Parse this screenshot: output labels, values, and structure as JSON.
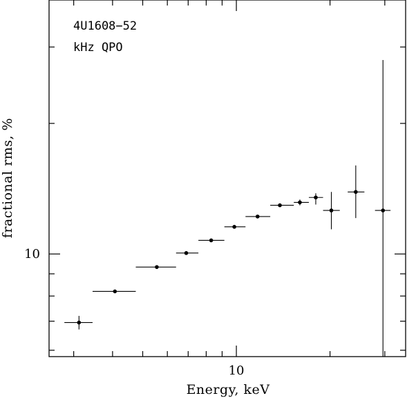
{
  "chart_data": {
    "type": "scatter",
    "xlabel": "Energy, keV",
    "ylabel": "fractional rms, %",
    "annotations": [
      "4U1608−52",
      "kHz QPO"
    ],
    "x_scale": "log",
    "y_scale": "log",
    "xlim": [
      2.5,
      35
    ],
    "ylim": [
      5.8,
      38.5
    ],
    "x_tick_labels": [
      {
        "value": 10,
        "label": "10"
      }
    ],
    "y_tick_labels": [
      {
        "value": 10,
        "label": "10"
      }
    ],
    "x_major_ticks": [
      10
    ],
    "x_minor_ticks": [
      3,
      4,
      5,
      6,
      7,
      8,
      9,
      20,
      30
    ],
    "y_major_ticks": [
      10
    ],
    "y_minor_ticks": [
      6,
      7,
      8,
      9,
      20,
      30
    ],
    "grid": false,
    "legend": "none",
    "points": [
      {
        "x": 3.12,
        "xerr": [
          2.8,
          3.45
        ],
        "y": 6.95,
        "yerr": [
          6.7,
          7.2
        ]
      },
      {
        "x": 4.07,
        "xerr": [
          3.45,
          4.75
        ],
        "y": 8.2,
        "yerr": [
          8.15,
          8.25
        ]
      },
      {
        "x": 5.55,
        "xerr": [
          4.75,
          6.4
        ],
        "y": 9.33,
        "yerr": [
          9.3,
          9.36
        ]
      },
      {
        "x": 6.9,
        "xerr": [
          6.4,
          7.55
        ],
        "y": 10.05,
        "yerr": [
          10.02,
          10.08
        ]
      },
      {
        "x": 8.3,
        "xerr": [
          7.55,
          9.15
        ],
        "y": 10.75,
        "yerr": [
          10.72,
          10.78
        ]
      },
      {
        "x": 9.85,
        "xerr": [
          9.15,
          10.7
        ],
        "y": 11.55,
        "yerr": [
          11.52,
          11.58
        ]
      },
      {
        "x": 11.7,
        "xerr": [
          10.7,
          12.85
        ],
        "y": 12.2,
        "yerr": [
          12.15,
          12.25
        ]
      },
      {
        "x": 13.8,
        "xerr": [
          12.85,
          15.3
        ],
        "y": 12.95,
        "yerr": [
          12.9,
          13.0
        ]
      },
      {
        "x": 16.0,
        "xerr": [
          15.3,
          17.1
        ],
        "y": 13.15,
        "yerr": [
          12.95,
          13.35
        ]
      },
      {
        "x": 18.0,
        "xerr": [
          17.1,
          19.0
        ],
        "y": 13.5,
        "yerr": [
          13.0,
          13.8
        ]
      },
      {
        "x": 20.2,
        "xerr": [
          19.0,
          21.5
        ],
        "y": 12.6,
        "yerr": [
          11.4,
          13.9
        ]
      },
      {
        "x": 24.2,
        "xerr": [
          22.8,
          25.8
        ],
        "y": 13.9,
        "yerr": [
          12.1,
          16.0
        ]
      },
      {
        "x": 29.6,
        "xerr": [
          27.9,
          31.3
        ],
        "y": 12.6,
        "yerr": [
          5.8,
          28.0
        ]
      }
    ]
  }
}
